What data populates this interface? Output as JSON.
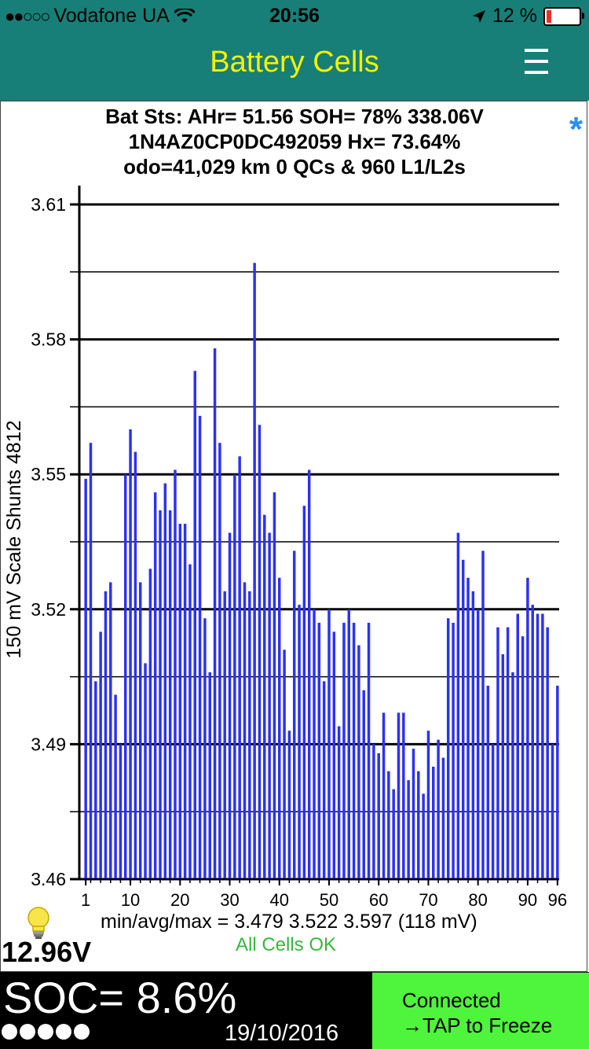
{
  "status_bar": {
    "signal": "●●○○○",
    "carrier": "Vodafone UA",
    "time": "20:56",
    "battery_pct": "12 %",
    "battery_level": 0.12,
    "wifi_icon": "wifi-icon",
    "location_icon": "location-arrow-icon"
  },
  "nav": {
    "title": "Battery Cells",
    "menu_icon": "hamburger-menu-icon"
  },
  "info": {
    "line1": "Bat Sts: AHr= 51.56 SOH= 78% 338.06V",
    "line2": "1N4AZ0CP0DC492059   Hx= 73.64%",
    "line3": "odo=41,029 km 0 QCs & 960 L1/L2s",
    "asterisk": "*"
  },
  "colors": {
    "bar": "#2c32f0",
    "header": "#177f78",
    "title": "#f3f200",
    "ok": "#38b640",
    "connect_bg": "#4ff53c"
  },
  "chart_data": {
    "type": "bar",
    "ylabel": "150 mV Scale   Shunts 4812",
    "ylim": [
      3.46,
      3.61
    ],
    "yticks": [
      "3.61",
      "3.58",
      "3.55",
      "3.52",
      "3.49",
      "3.46"
    ],
    "xticks": [
      "1",
      "10",
      "20",
      "30",
      "40",
      "50",
      "60",
      "70",
      "80",
      "90",
      "96"
    ],
    "xtick_positions": [
      1,
      10,
      20,
      30,
      40,
      50,
      60,
      70,
      80,
      90,
      96
    ],
    "values": [
      3.549,
      3.557,
      3.504,
      3.515,
      3.524,
      3.526,
      3.501,
      3.49,
      3.55,
      3.56,
      3.555,
      3.526,
      3.508,
      3.529,
      3.546,
      3.542,
      3.548,
      3.542,
      3.551,
      3.539,
      3.539,
      3.53,
      3.573,
      3.563,
      3.518,
      3.506,
      3.578,
      3.557,
      3.524,
      3.537,
      3.55,
      3.554,
      3.526,
      3.524,
      3.597,
      3.561,
      3.541,
      3.537,
      3.546,
      3.527,
      3.511,
      3.493,
      3.533,
      3.521,
      3.543,
      3.551,
      3.52,
      3.517,
      3.504,
      3.52,
      3.515,
      3.494,
      3.517,
      3.52,
      3.517,
      3.512,
      3.502,
      3.517,
      3.49,
      3.488,
      3.497,
      3.484,
      3.48,
      3.497,
      3.497,
      3.482,
      3.489,
      3.484,
      3.479,
      3.493,
      3.485,
      3.491,
      3.487,
      3.518,
      3.517,
      3.537,
      3.531,
      3.527,
      3.524,
      3.52,
      3.533,
      3.503,
      3.49,
      3.516,
      3.51,
      3.516,
      3.506,
      3.519,
      3.514,
      3.527,
      3.521,
      3.519,
      3.519,
      3.516,
      3.49,
      3.503
    ]
  },
  "footer": {
    "stats": "min/avg/max = 3.479  3.522  3.597  (118 mV)",
    "status": "All Cells OK",
    "aux_voltage": "12.96V",
    "bulb_icon": "lightbulb-icon"
  },
  "bottom": {
    "soc": "SOC= 8.6%",
    "date": "19/10/2016",
    "connect_line1": "Connected",
    "connect_line2": "→TAP to Freeze"
  }
}
